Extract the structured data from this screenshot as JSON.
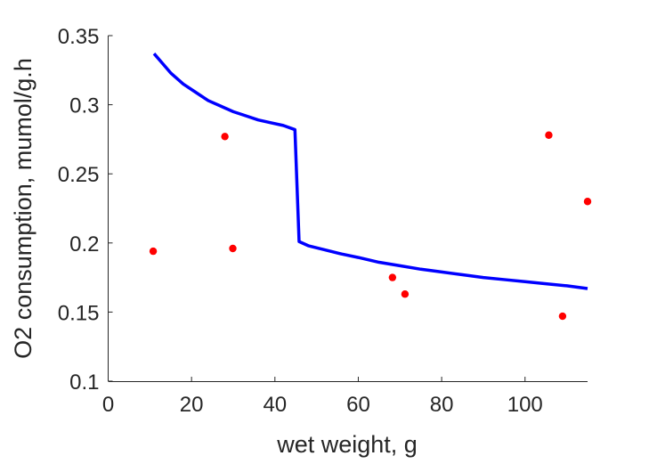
{
  "chart_data": {
    "type": "scatter",
    "xlabel": "wet weight, g",
    "ylabel": "O2 consumption, mumol/g.h",
    "xlim": [
      0,
      115
    ],
    "ylim": [
      0.1,
      0.35
    ],
    "xticks": [
      0,
      20,
      40,
      60,
      80,
      100
    ],
    "xtick_labels": [
      "0",
      "20",
      "40",
      "60",
      "80",
      "100"
    ],
    "yticks": [
      0.1,
      0.15,
      0.2,
      0.25,
      0.3,
      0.35
    ],
    "ytick_labels": [
      "0.1",
      "0.15",
      "0.2",
      "0.25",
      "0.3",
      "0.35"
    ],
    "grid": false,
    "box": false,
    "series": [
      {
        "kind": "scatter",
        "color": "#ff0000",
        "x": [
          10.8,
          28.0,
          29.9,
          68.2,
          71.2,
          105.7,
          109.0,
          115.0
        ],
        "y": [
          0.194,
          0.277,
          0.196,
          0.175,
          0.163,
          0.278,
          0.147,
          0.23
        ]
      },
      {
        "kind": "line",
        "color": "#0000ff",
        "x": [
          11,
          13,
          15,
          18,
          21,
          24,
          27,
          30,
          33,
          36,
          39,
          42,
          44.8,
          45.8,
          48,
          52,
          56,
          60,
          65,
          70,
          75,
          80,
          85,
          90,
          95,
          100,
          105,
          110,
          115
        ],
        "y": [
          0.337,
          0.33,
          0.323,
          0.315,
          0.309,
          0.303,
          0.299,
          0.295,
          0.292,
          0.289,
          0.287,
          0.285,
          0.282,
          0.201,
          0.198,
          0.195,
          0.192,
          0.1895,
          0.186,
          0.1835,
          0.181,
          0.179,
          0.177,
          0.175,
          0.1735,
          0.172,
          0.1705,
          0.169,
          0.167
        ]
      }
    ]
  }
}
